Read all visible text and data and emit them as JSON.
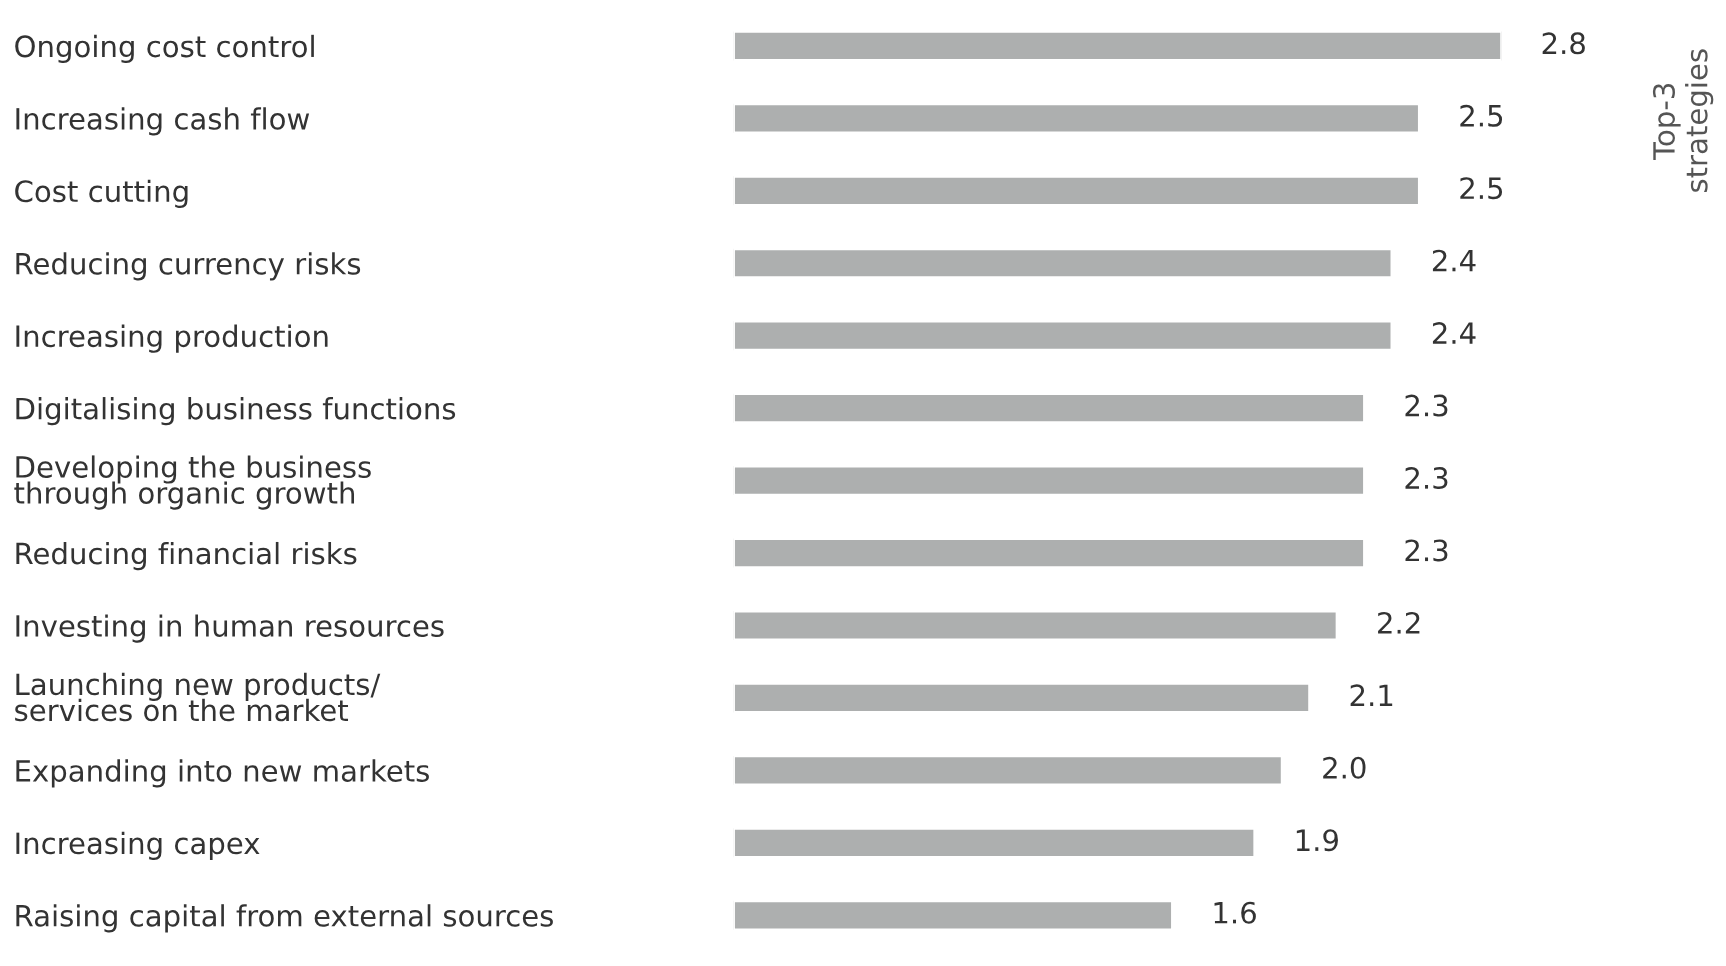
{
  "chart_data": {
    "type": "bar",
    "orientation": "horizontal",
    "categories": [
      "Ongoing cost control",
      "Increasing cash flow",
      "Cost cutting",
      "Reducing currency risks",
      "Increasing production",
      "Digitalising business functions",
      "Developing the business\nthrough organic growth",
      "Reducing financial risks",
      "Investing in human resources",
      "Launching new products/\nservices on the market",
      "Expanding into new markets",
      "Increasing capex",
      "Raising capital from external sources"
    ],
    "values": [
      2.8,
      2.5,
      2.5,
      2.4,
      2.4,
      2.3,
      2.3,
      2.3,
      2.2,
      2.1,
      2.0,
      1.9,
      1.6
    ],
    "value_labels": [
      "2.8",
      "2.5",
      "2.5",
      "2.4",
      "2.4",
      "2.3",
      "2.3",
      "2.3",
      "2.2",
      "2.1",
      "2.0",
      "1.9",
      "1.6"
    ],
    "color": "#adafaf",
    "annotations": [
      "Top-3\nstrategies"
    ],
    "tick_labels": "y",
    "grid": false,
    "legend": false
  }
}
